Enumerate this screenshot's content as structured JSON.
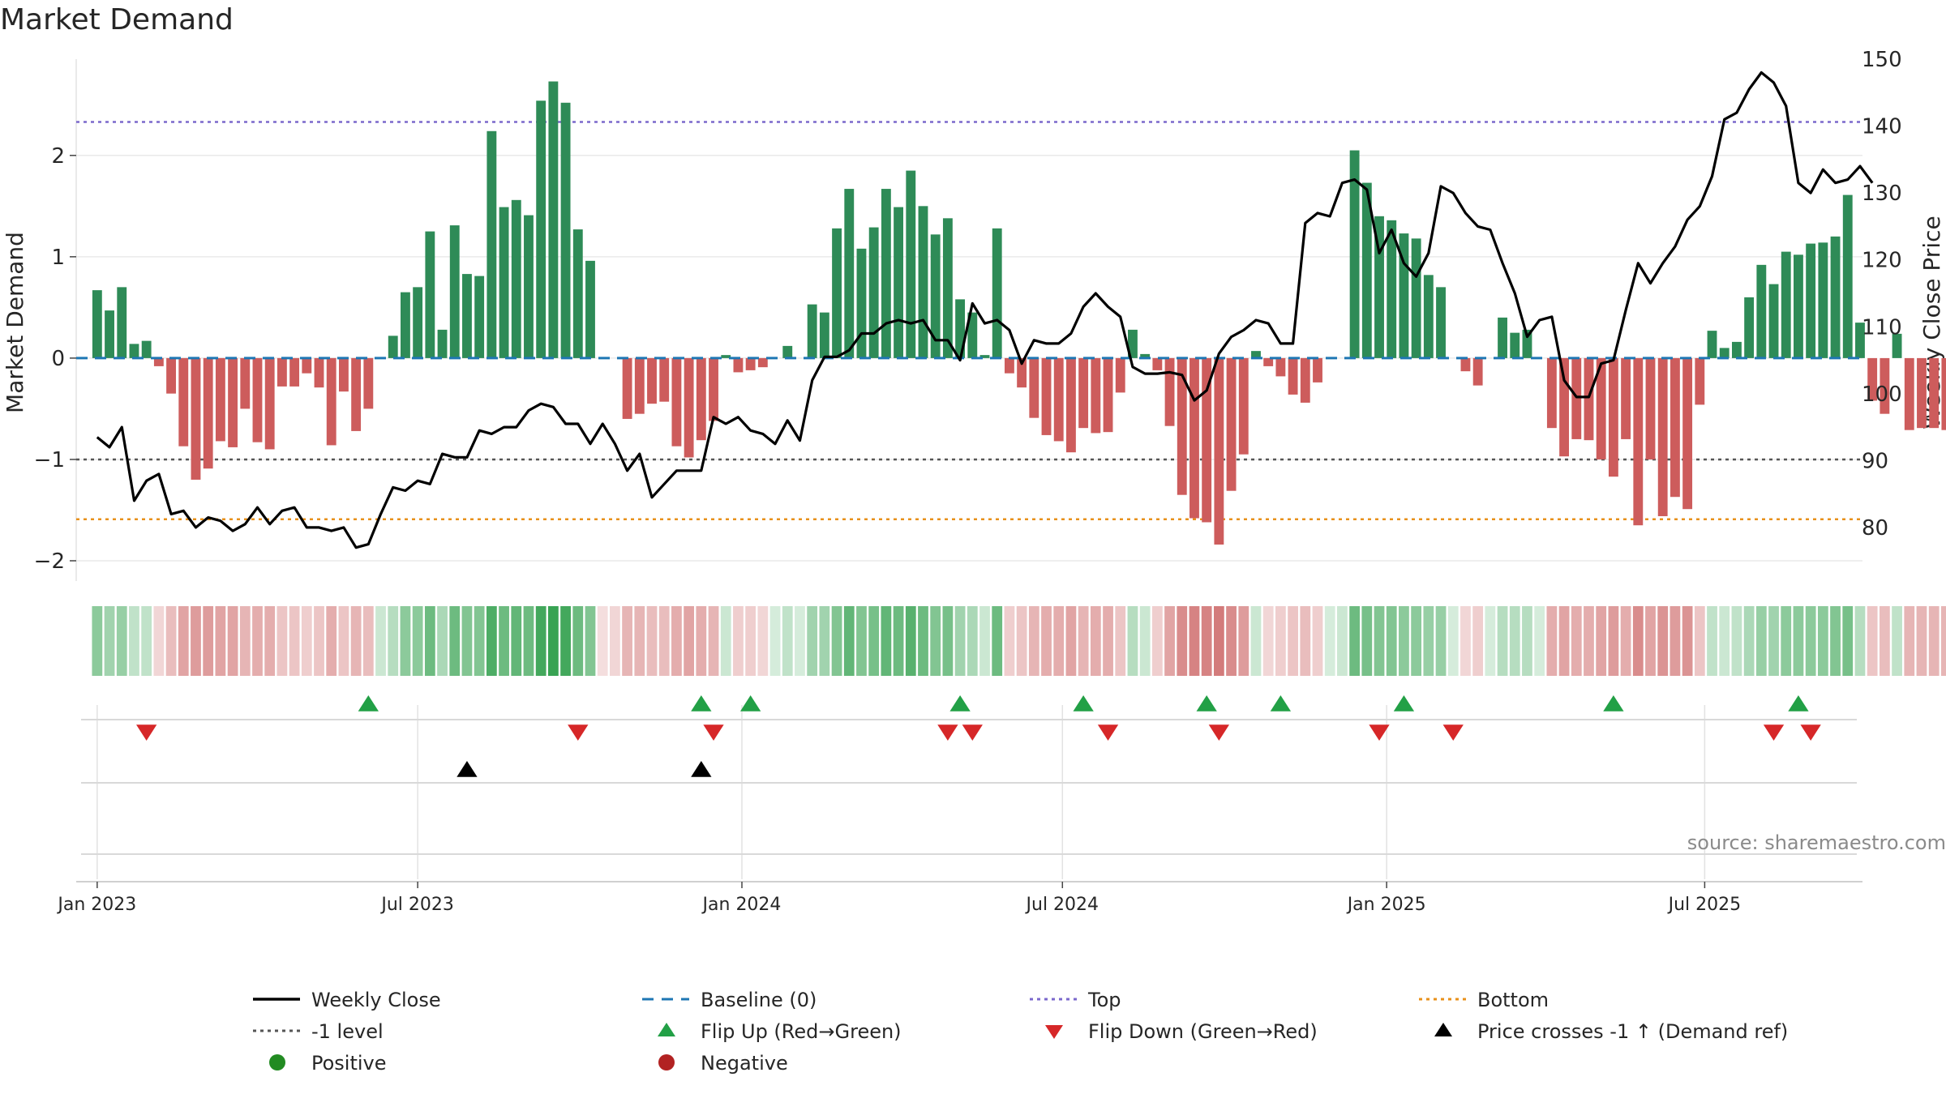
{
  "chart_data": {
    "type": "bar",
    "title": "Market Demand",
    "ylabel": "Market Demand",
    "y2label": "Weekly Close Price",
    "source": "source: sharemaestro.com",
    "ylim": [
      -2.2,
      2.95
    ],
    "y2lim": [
      72,
      150
    ],
    "yticks": [
      -2,
      -1,
      0,
      1,
      2
    ],
    "y2ticks": [
      80,
      90,
      100,
      110,
      120,
      130,
      140,
      150
    ],
    "x_range": [
      -1.7,
      143.2
    ],
    "xticks": [
      {
        "week": 0,
        "label": "Jan 2023"
      },
      {
        "week": 26,
        "label": "Jul 2023"
      },
      {
        "week": 52.3,
        "label": "Jan 2024"
      },
      {
        "week": 78.3,
        "label": "Jul 2024"
      },
      {
        "week": 104.6,
        "label": "Jan 2025"
      },
      {
        "week": 130.4,
        "label": "Jul 2025"
      }
    ],
    "reference_lines": {
      "top": 2.33,
      "bottom": -1.59,
      "level": -1,
      "baseline": 0
    },
    "demand": [
      0.67,
      0.47,
      0.7,
      0.14,
      0.17,
      -0.08,
      -0.35,
      -0.87,
      -1.2,
      -1.09,
      -0.82,
      -0.88,
      -0.5,
      -0.83,
      -0.9,
      -0.28,
      -0.28,
      -0.15,
      -0.29,
      -0.86,
      -0.33,
      -0.72,
      -0.5,
      0.0,
      0.22,
      0.65,
      0.7,
      1.25,
      0.28,
      1.31,
      0.83,
      0.81,
      2.24,
      1.49,
      1.56,
      1.41,
      2.54,
      2.73,
      2.52,
      1.27,
      0.96,
      0.0,
      0.0,
      -0.6,
      -0.55,
      -0.45,
      -0.43,
      -0.87,
      -0.98,
      -0.81,
      -0.62,
      0.03,
      -0.14,
      -0.12,
      -0.09,
      0.0,
      0.12,
      0.0,
      0.53,
      0.45,
      1.28,
      1.67,
      1.08,
      1.29,
      1.67,
      1.49,
      1.85,
      1.5,
      1.22,
      1.38,
      0.58,
      0.45,
      0.03,
      1.28,
      -0.15,
      -0.29,
      -0.59,
      -0.76,
      -0.82,
      -0.93,
      -0.69,
      -0.74,
      -0.73,
      -0.34,
      0.28,
      0.04,
      -0.12,
      -0.67,
      -1.35,
      -1.58,
      -1.62,
      -1.84,
      -1.31,
      -0.95,
      0.07,
      -0.08,
      -0.18,
      -0.36,
      -0.44,
      -0.24,
      0.0,
      0.0,
      2.05,
      1.73,
      1.4,
      1.36,
      1.23,
      1.18,
      0.82,
      0.7,
      0.0,
      -0.13,
      -0.27,
      0.0,
      0.4,
      0.25,
      0.28,
      0.0,
      -0.69,
      -0.97,
      -0.8,
      -0.81,
      -1.0,
      -1.17,
      -0.8,
      -1.65,
      -1.0,
      -1.56,
      -1.37,
      -1.49,
      -0.46,
      0.27,
      0.1,
      0.16,
      0.6,
      0.92,
      0.73,
      1.05,
      1.02,
      1.13,
      1.14,
      1.2,
      1.61,
      0.35,
      -0.42,
      -0.55,
      0.24,
      -0.71,
      -0.69,
      -0.69,
      -0.71
    ],
    "close": [
      93.5,
      92,
      95,
      84,
      87,
      88,
      82,
      82.5,
      80,
      81.5,
      81,
      79.5,
      80.5,
      83,
      80.5,
      82.5,
      83,
      80,
      80,
      79.5,
      80,
      77,
      77.5,
      82,
      86,
      85.5,
      87,
      86.5,
      91,
      90.5,
      90.5,
      94.5,
      94,
      95,
      95,
      97.5,
      98.5,
      98,
      95.5,
      95.5,
      92.5,
      95.5,
      92.5,
      88.5,
      91,
      84.5,
      86.5,
      88.5,
      88.5,
      88.5,
      96.5,
      95.5,
      96.5,
      94.5,
      94,
      92.5,
      96,
      93,
      102,
      105.5,
      105.5,
      106.5,
      109,
      109,
      110.5,
      111,
      110.5,
      111,
      108,
      108,
      105,
      113.5,
      110.5,
      111,
      109.5,
      104.5,
      108,
      107.5,
      107.5,
      109,
      113,
      115,
      113,
      111.5,
      104,
      103,
      103,
      103.2,
      102.8,
      99,
      100.5,
      106,
      108.5,
      109.5,
      111,
      110.5,
      107.5,
      107.5,
      125.5,
      127,
      126.5,
      131.5,
      132,
      130.5,
      121,
      124.5,
      119.5,
      117.5,
      121,
      131,
      130,
      127,
      125,
      124.5,
      119.5,
      115,
      108.5,
      111,
      111.5,
      102,
      99.5,
      99.5,
      104.5,
      105,
      112.5,
      119.5,
      116.5,
      119.5,
      122,
      126,
      128,
      132.5,
      141,
      142,
      145.5,
      148,
      146.5,
      143,
      131.5,
      130,
      133.5,
      131.5,
      132,
      134,
      131.5
    ],
    "heat_row_values": [
      0.55,
      0.45,
      0.5,
      0.3,
      0.3,
      -0.25,
      -0.4,
      -0.55,
      -0.6,
      -0.6,
      -0.55,
      -0.55,
      -0.45,
      -0.5,
      -0.5,
      -0.35,
      -0.35,
      -0.3,
      -0.35,
      -0.5,
      -0.35,
      -0.45,
      -0.4,
      0.25,
      0.35,
      0.55,
      0.55,
      0.7,
      0.4,
      0.7,
      0.6,
      0.6,
      0.85,
      0.7,
      0.75,
      0.7,
      0.9,
      0.95,
      0.9,
      0.7,
      0.6,
      -0.2,
      -0.25,
      -0.45,
      -0.45,
      -0.4,
      -0.4,
      -0.5,
      -0.55,
      -0.5,
      -0.45,
      0.25,
      -0.3,
      -0.3,
      -0.25,
      0.2,
      0.3,
      0.2,
      0.45,
      0.45,
      0.6,
      0.75,
      0.6,
      0.65,
      0.75,
      0.7,
      0.8,
      0.7,
      0.6,
      0.65,
      0.45,
      0.4,
      0.25,
      0.7,
      -0.3,
      -0.35,
      -0.45,
      -0.5,
      -0.5,
      -0.55,
      -0.45,
      -0.5,
      -0.5,
      -0.35,
      0.35,
      0.25,
      -0.3,
      -0.55,
      -0.7,
      -0.75,
      -0.75,
      -0.8,
      -0.7,
      -0.6,
      0.25,
      -0.25,
      -0.3,
      -0.35,
      -0.4,
      -0.3,
      0.2,
      0.25,
      0.7,
      0.65,
      0.6,
      0.6,
      0.55,
      0.55,
      0.5,
      0.5,
      0.2,
      -0.25,
      -0.3,
      0.2,
      0.35,
      0.35,
      0.35,
      0.2,
      -0.5,
      -0.55,
      -0.5,
      -0.5,
      -0.55,
      -0.6,
      -0.5,
      -0.7,
      -0.55,
      -0.65,
      -0.6,
      -0.65,
      -0.35,
      0.3,
      0.25,
      0.3,
      0.4,
      0.5,
      0.45,
      0.55,
      0.55,
      0.55,
      0.55,
      0.6,
      0.65,
      0.35,
      -0.35,
      -0.4,
      0.3,
      -0.45,
      -0.45,
      -0.45,
      -0.45
    ],
    "flip_up_weeks": [
      22,
      49,
      53,
      70,
      80,
      90,
      96,
      106,
      123,
      138
    ],
    "flip_down_weeks": [
      4,
      39,
      50,
      69,
      71,
      82,
      91,
      104,
      110,
      136,
      139
    ],
    "price_cross_weeks": [
      30,
      49
    ],
    "legend": [
      {
        "label": "Weekly Close",
        "marker": "solid-line",
        "color": "#000000"
      },
      {
        "label": "Baseline (0)",
        "marker": "dashed-line",
        "color": "#1f77b4"
      },
      {
        "label": "Top",
        "marker": "dotted-line",
        "color": "#7b68cc"
      },
      {
        "label": "Bottom",
        "marker": "dotted-line",
        "color": "#e8901a"
      },
      {
        "label": "-1 level",
        "marker": "dotted-line",
        "color": "#555555"
      },
      {
        "label": "Flip Up (Red→Green)",
        "marker": "triangle-up",
        "color": "#22a046"
      },
      {
        "label": "Flip Down (Green→Red)",
        "marker": "triangle-down",
        "color": "#d62728"
      },
      {
        "label": "Price crosses -1 ↑ (Demand ref)",
        "marker": "triangle-up",
        "color": "#000000"
      },
      {
        "label": "Positive",
        "marker": "circle",
        "color": "#228b22"
      },
      {
        "label": "Negative",
        "marker": "circle",
        "color": "#b22222"
      }
    ],
    "colors": {
      "positive_bar": "#2e8b57",
      "negative_bar": "#cd5c5c",
      "heat_positive": "#2e9e4a",
      "heat_negative": "#c85a5a",
      "close_line": "#000000",
      "baseline": "#1f77b4",
      "top": "#7b68cc",
      "bottom": "#e8901a",
      "level": "#555555",
      "flip_up": "#22a046",
      "flip_down": "#d62728",
      "price_cross": "#000000"
    }
  }
}
